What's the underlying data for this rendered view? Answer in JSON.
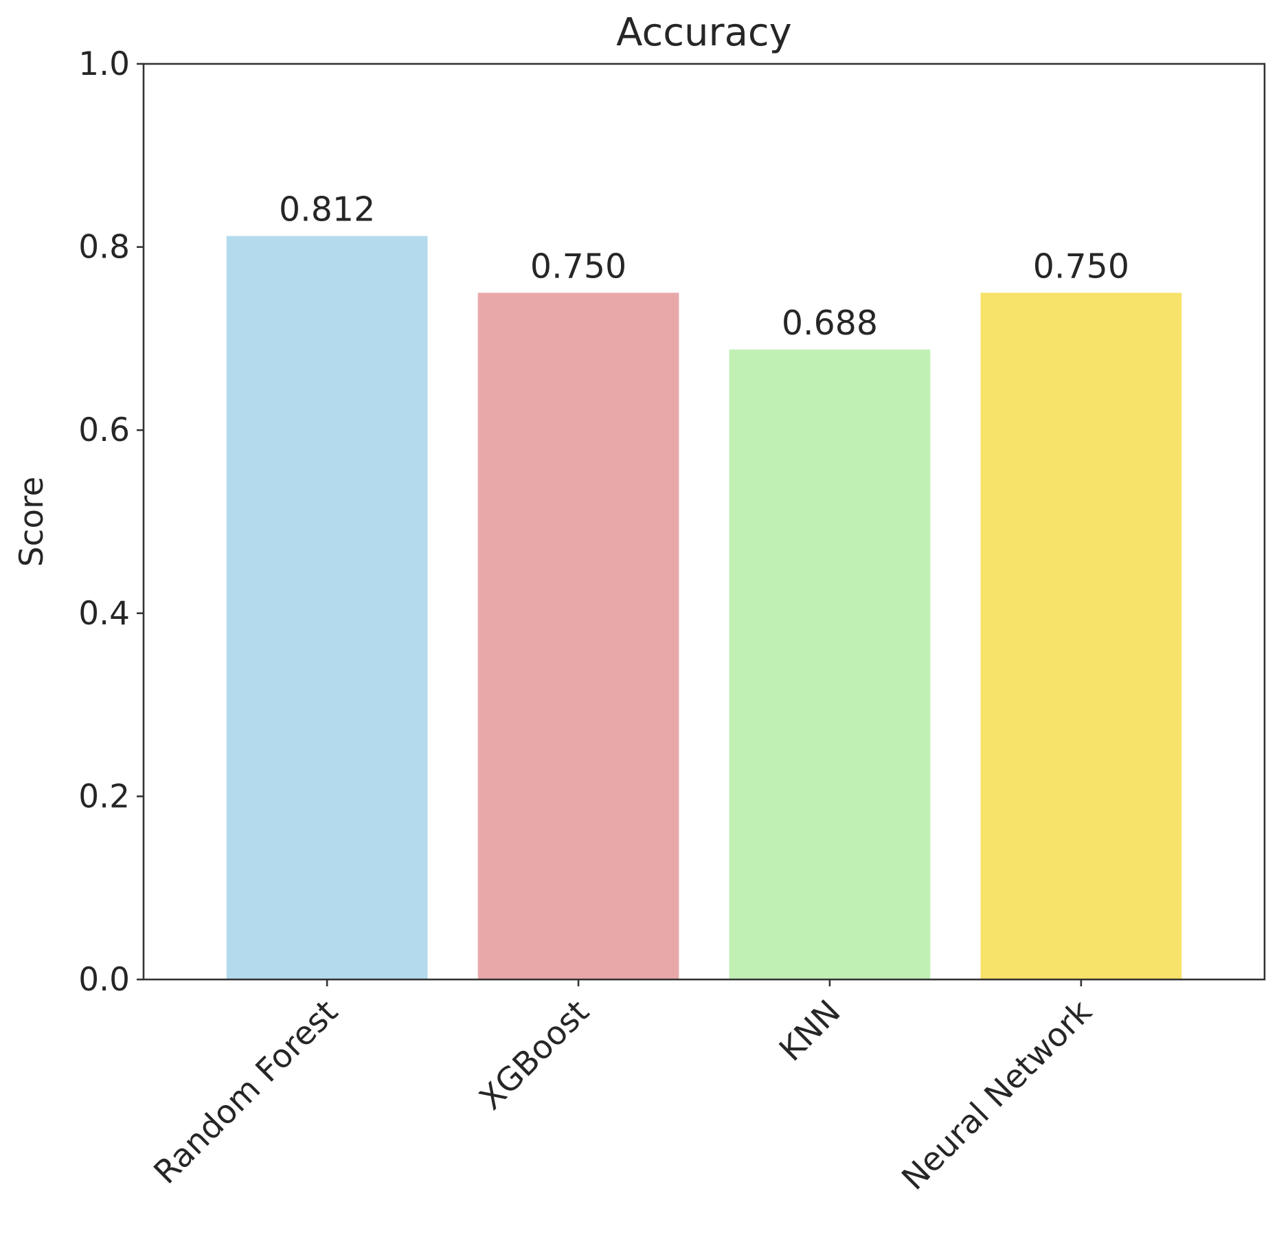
{
  "chart_data": {
    "type": "bar",
    "title": "Accuracy",
    "xlabel": "",
    "ylabel": "Score",
    "categories": [
      "Random Forest",
      "XGBoost",
      "KNN",
      "Neural Network"
    ],
    "values": [
      0.812,
      0.75,
      0.688,
      0.75
    ],
    "value_labels": [
      "0.812",
      "0.750",
      "0.688",
      "0.750"
    ],
    "bar_colors": [
      "#b4dbed",
      "#e8a8a9",
      "#c1f0b5",
      "#f7e26a"
    ],
    "ylim": [
      0.0,
      1.0
    ],
    "yticks": [
      0.0,
      0.2,
      0.4,
      0.6,
      0.8,
      1.0
    ],
    "ytick_labels": [
      "0.0",
      "0.2",
      "0.4",
      "0.6",
      "0.8",
      "1.0"
    ],
    "grid": false,
    "legend": null
  }
}
